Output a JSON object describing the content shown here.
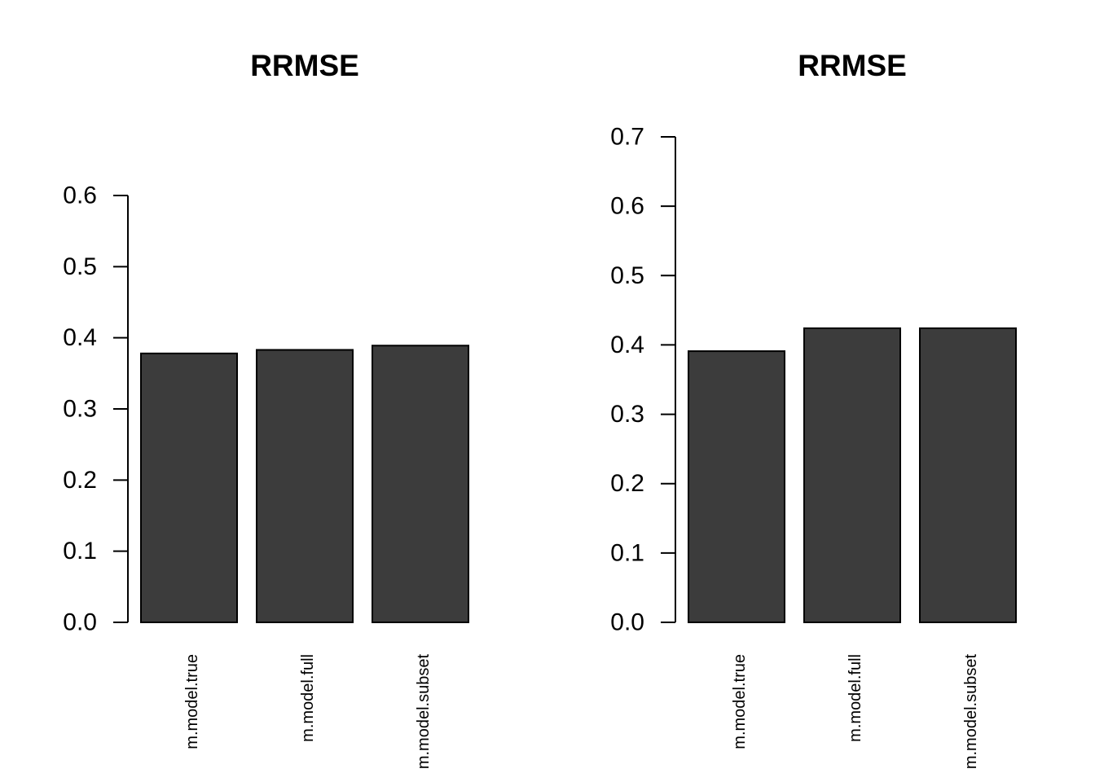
{
  "chart_data": [
    {
      "type": "bar",
      "title": "RRMSE",
      "categories": [
        "m.model.true",
        "m.model.full",
        "m.model.subset"
      ],
      "values": [
        0.378,
        0.383,
        0.389
      ],
      "ylim": [
        0,
        0.6
      ],
      "yticks": [
        "0.0",
        "0.1",
        "0.2",
        "0.3",
        "0.4",
        "0.5",
        "0.6"
      ],
      "xlabel": "",
      "ylabel": "",
      "grid": false,
      "bar_color": "#3c3c3c"
    },
    {
      "type": "bar",
      "title": "RRMSE",
      "categories": [
        "m.model.true",
        "m.model.full",
        "m.model.subset"
      ],
      "values": [
        0.391,
        0.424,
        0.424
      ],
      "ylim": [
        0,
        0.7
      ],
      "yticks": [
        "0.0",
        "0.1",
        "0.2",
        "0.3",
        "0.4",
        "0.5",
        "0.6",
        "0.7"
      ],
      "xlabel": "",
      "ylabel": "",
      "grid": false,
      "bar_color": "#3c3c3c"
    }
  ]
}
